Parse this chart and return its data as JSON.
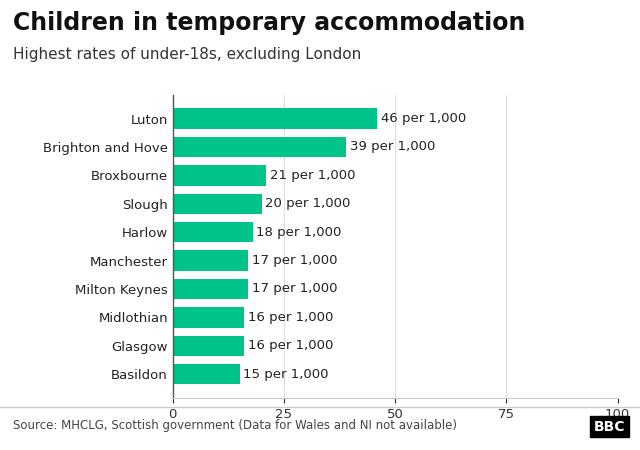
{
  "title": "Children in temporary accommodation",
  "subtitle": "Highest rates of under-18s, excluding London",
  "categories": [
    "Luton",
    "Brighton and Hove",
    "Broxbourne",
    "Slough",
    "Harlow",
    "Manchester",
    "Milton Keynes",
    "Midlothian",
    "Glasgow",
    "Basildon"
  ],
  "values": [
    46,
    39,
    21,
    20,
    18,
    17,
    17,
    16,
    16,
    15
  ],
  "labels": [
    "46 per 1,000",
    "39 per 1,000",
    "21 per 1,000",
    "20 per 1,000",
    "18 per 1,000",
    "17 per 1,000",
    "17 per 1,000",
    "16 per 1,000",
    "16 per 1,000",
    "15 per 1,000"
  ],
  "bar_color": "#00c389",
  "xlim": [
    0,
    100
  ],
  "xticks": [
    0,
    25,
    50,
    75,
    100
  ],
  "source_text": "Source: MHCLG, Scottish government (Data for Wales and NI not available)",
  "bbc_text": "BBC",
  "title_fontsize": 17,
  "subtitle_fontsize": 11,
  "label_fontsize": 9.5,
  "tick_fontsize": 9.5,
  "source_fontsize": 8.5,
  "background_color": "#ffffff",
  "footer_line_color": "#cccccc"
}
